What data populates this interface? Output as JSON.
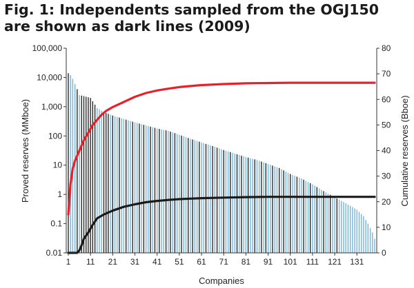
{
  "title_lines": [
    "Fig. 1: Independents sampled from the OGJ150",
    "are shown as dark lines (2009)"
  ],
  "chart_data": {
    "type": "bar",
    "xlabel": "Companies",
    "ylabel_left": "Proved reserves (MMboe)",
    "ylabel_right": "Cumulative reserves (Bboe)",
    "left_axis": {
      "scale": "log",
      "ylim": [
        0.01,
        100000
      ],
      "ticks": [
        "0.01",
        "0.1",
        "1",
        "10",
        "100",
        "1,000",
        "10,000",
        "100,000"
      ],
      "tick_values": [
        0.01,
        0.1,
        1,
        10,
        100,
        1000,
        10000,
        100000
      ]
    },
    "right_axis": {
      "scale": "linear",
      "ylim": [
        0,
        80
      ],
      "ticks": [
        "0",
        "10",
        "20",
        "30",
        "40",
        "50",
        "60",
        "70",
        "80"
      ],
      "tick_values": [
        0,
        10,
        20,
        30,
        40,
        50,
        60,
        70,
        80
      ]
    },
    "x_ticks": [
      "1",
      "11",
      "21",
      "31",
      "41",
      "51",
      "61",
      "71",
      "81",
      "91",
      "101",
      "111",
      "121",
      "131"
    ],
    "x_tick_values": [
      1,
      11,
      21,
      31,
      41,
      51,
      61,
      71,
      81,
      91,
      101,
      111,
      121,
      131
    ],
    "x_range": [
      1,
      139
    ],
    "company_count": 139,
    "bar_series": {
      "description_note": "",
      "anchors_company": [
        1,
        2,
        3,
        4,
        5,
        6,
        8,
        11,
        14,
        17,
        21,
        26,
        31,
        36,
        41,
        46,
        51,
        56,
        61,
        66,
        71,
        76,
        81,
        86,
        91,
        96,
        101,
        106,
        111,
        116,
        121,
        126,
        131,
        134,
        136,
        138,
        139
      ],
      "anchors_value": [
        14000,
        12000,
        9000,
        6000,
        4000,
        2500,
        2300,
        2000,
        900,
        650,
        500,
        380,
        290,
        230,
        180,
        150,
        110,
        80,
        60,
        45,
        33,
        25,
        19,
        15,
        11,
        8,
        5,
        3.5,
        2.2,
        1.3,
        0.8,
        0.5,
        0.3,
        0.18,
        0.1,
        0.05,
        0.03
      ],
      "dark_companies": [
        1,
        5,
        7,
        8,
        9,
        10,
        11,
        12,
        13,
        17,
        18,
        19,
        21,
        24,
        27,
        30,
        33,
        35,
        38,
        40,
        42,
        45,
        47,
        49,
        52,
        55,
        57,
        60,
        63,
        66,
        68,
        71,
        74,
        77,
        79,
        82,
        85,
        88,
        90,
        93,
        96,
        98,
        101,
        104,
        107,
        110,
        113,
        116,
        119,
        122
      ]
    },
    "series": [
      {
        "name": "",
        "color": "#e8202a",
        "axis": "right",
        "x": [
          1,
          2,
          3,
          4,
          6,
          8,
          10,
          12,
          14,
          16,
          18,
          21,
          26,
          31,
          36,
          41,
          46,
          51,
          56,
          61,
          71,
          81,
          91,
          101,
          111,
          121,
          131,
          139
        ],
        "y": [
          15,
          27,
          33,
          36,
          40,
          44,
          47,
          50,
          52,
          54,
          55.5,
          57,
          59,
          61,
          62.5,
          63.5,
          64.2,
          64.8,
          65.2,
          65.6,
          66.0,
          66.3,
          66.4,
          66.5,
          66.5,
          66.5,
          66.5,
          66.5
        ]
      },
      {
        "name": "",
        "color": "#1a1a1a",
        "axis": "right",
        "x": [
          1,
          3,
          5,
          6,
          7,
          8,
          10,
          12,
          14,
          17,
          21,
          26,
          31,
          36,
          41,
          46,
          51,
          56,
          61,
          71,
          81,
          91,
          101,
          111,
          121,
          131,
          139
        ],
        "y": [
          0,
          0,
          0,
          1,
          3,
          5.5,
          8,
          11,
          13.5,
          15,
          16.5,
          18,
          19,
          19.8,
          20.3,
          20.7,
          21.0,
          21.2,
          21.4,
          21.6,
          21.8,
          21.9,
          21.9,
          21.9,
          21.9,
          21.9,
          21.9
        ]
      }
    ],
    "colors": {
      "light_bar": "#6aaed6",
      "dark_bar": "#1a1a1a",
      "axis": "#333333"
    }
  }
}
